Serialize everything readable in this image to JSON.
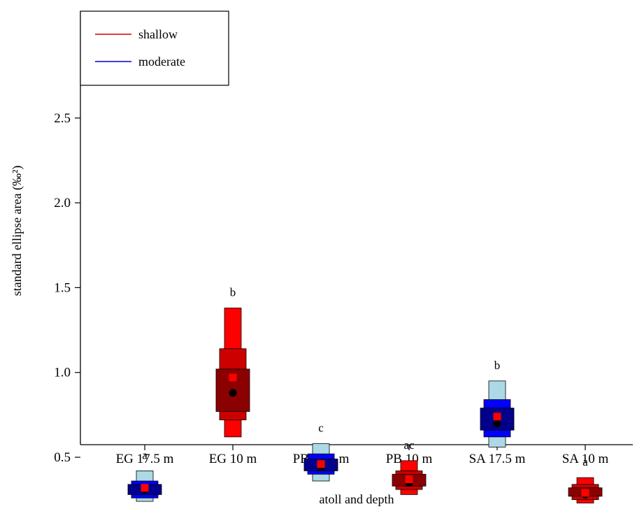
{
  "chart_data": {
    "type": "box",
    "title": "",
    "xlabel": "atoll and depth",
    "ylabel": "standard ellipse area (‰²)",
    "ylim": [
      0,
      2.5
    ],
    "y_ticks": [
      "0.5",
      "1.0",
      "1.5",
      "2.0",
      "2.5"
    ],
    "grid": false,
    "legend": {
      "position": "top-left",
      "entries": [
        {
          "label": "shallow",
          "color": "#cc0000"
        },
        {
          "label": "moderate",
          "color": "#0000cc"
        }
      ]
    },
    "series": [
      {
        "name": "shallow",
        "colors": {
          "inner": "#8b0000",
          "mid": "#cd0000",
          "outer": "#ff0000"
        }
      },
      {
        "name": "moderate",
        "colors": {
          "inner": "#00008b",
          "mid": "#0000ff",
          "outer": "#add8e6"
        }
      }
    ],
    "groups": [
      {
        "label": "EG 17.5 m",
        "series": "moderate",
        "letter": "a",
        "ci95": [
          0.24,
          0.42
        ],
        "ci75": [
          0.26,
          0.36
        ],
        "ci50": [
          0.28,
          0.34
        ],
        "mode": 0.31,
        "sea_c": 0.32
      },
      {
        "label": "EG 10 m",
        "series": "shallow",
        "letter": "b",
        "ci95": [
          0.62,
          1.38
        ],
        "ci75": [
          0.72,
          1.14
        ],
        "ci50": [
          0.77,
          1.02
        ],
        "mode": 0.88,
        "sea_c": 0.97
      },
      {
        "label": "PB 17.5 m",
        "series": "moderate",
        "letter": "c",
        "ci95": [
          0.36,
          0.58
        ],
        "ci75": [
          0.4,
          0.52
        ],
        "ci50": [
          0.42,
          0.49
        ],
        "mode": 0.44,
        "sea_c": 0.46
      },
      {
        "label": "PB 10 m",
        "series": "shallow",
        "letter": "ac",
        "ci95": [
          0.28,
          0.48
        ],
        "ci75": [
          0.31,
          0.42
        ],
        "ci50": [
          0.33,
          0.4
        ],
        "mode": 0.35,
        "sea_c": 0.37
      },
      {
        "label": "SA 17.5 m",
        "series": "moderate",
        "letter": "b",
        "ci95": [
          0.56,
          0.95
        ],
        "ci75": [
          0.62,
          0.84
        ],
        "ci50": [
          0.66,
          0.79
        ],
        "mode": 0.7,
        "sea_c": 0.74
      },
      {
        "label": "SA 10 m",
        "series": "shallow",
        "letter": "a",
        "ci95": [
          0.23,
          0.38
        ],
        "ci75": [
          0.25,
          0.34
        ],
        "ci50": [
          0.27,
          0.32
        ],
        "mode": 0.28,
        "sea_c": 0.29
      }
    ]
  }
}
